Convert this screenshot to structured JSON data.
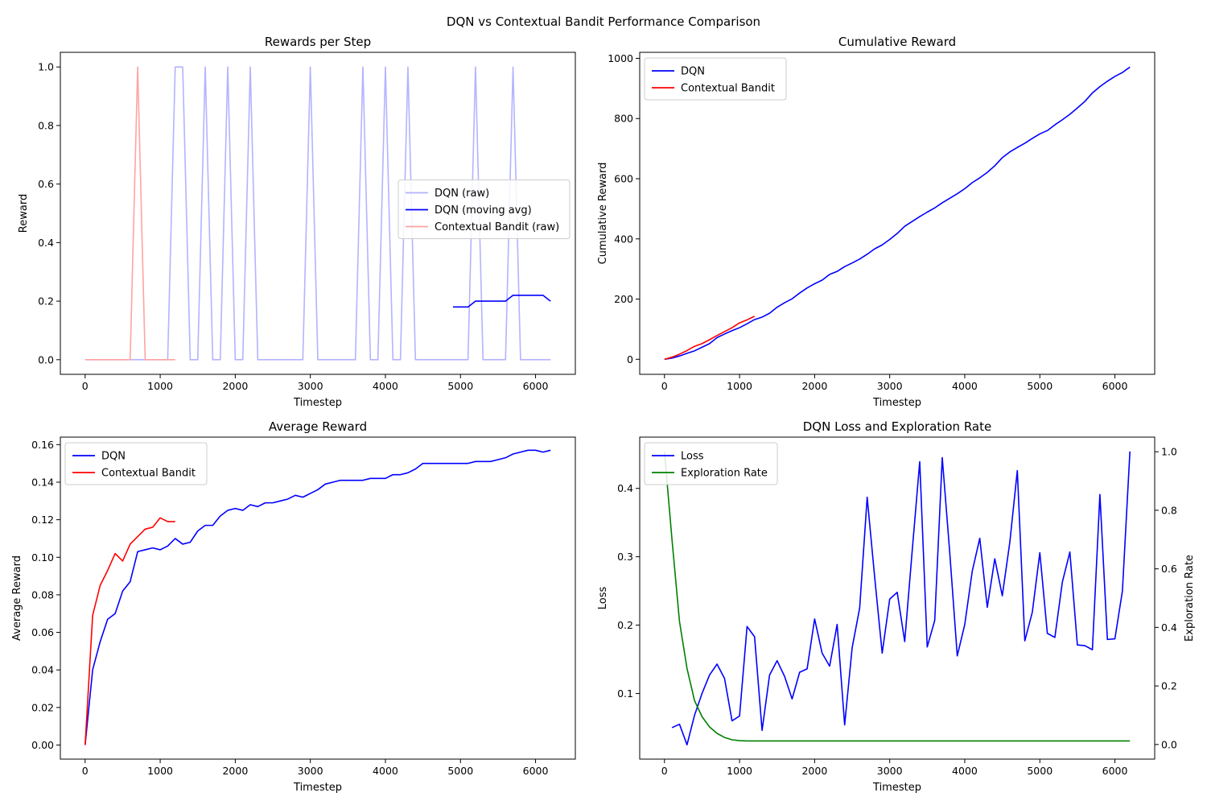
{
  "figure": {
    "title": "DQN vs Contextual Bandit Performance Comparison"
  },
  "chart_data": [
    {
      "id": "rewards",
      "type": "line",
      "title": "Rewards per Step",
      "xlabel": "Timestep",
      "ylabel": "Reward",
      "xlim": [
        -330,
        6530
      ],
      "ylim": [
        -0.05,
        1.05
      ],
      "xticks": [
        0,
        1000,
        2000,
        3000,
        4000,
        5000,
        6000
      ],
      "yticks": [
        0.0,
        0.2,
        0.4,
        0.6,
        0.8,
        1.0
      ],
      "ytick_decimals": 1,
      "legend": "center-right",
      "series": [
        {
          "name": "DQN (raw)",
          "color": "#b3b3ff",
          "x": [
            0,
            100,
            200,
            300,
            400,
            500,
            600,
            700,
            800,
            900,
            1000,
            1100,
            1200,
            1300,
            1400,
            1500,
            1600,
            1700,
            1800,
            1900,
            2000,
            2100,
            2200,
            2300,
            2400,
            2500,
            2600,
            2700,
            2800,
            2900,
            3000,
            3100,
            3200,
            3300,
            3400,
            3500,
            3600,
            3700,
            3800,
            3900,
            4000,
            4100,
            4200,
            4300,
            4400,
            4500,
            4600,
            4700,
            4800,
            4900,
            5000,
            5100,
            5200,
            5300,
            5400,
            5500,
            5600,
            5700,
            5800,
            5900,
            6000,
            6100,
            6200
          ],
          "y": [
            0,
            0,
            0,
            0,
            0,
            0,
            0,
            0,
            0,
            0,
            0,
            0,
            1,
            1,
            0,
            0,
            1,
            0,
            0,
            1,
            0,
            0,
            1,
            0,
            0,
            0,
            0,
            0,
            0,
            0,
            1,
            0,
            0,
            0,
            0,
            0,
            0,
            1,
            0,
            0,
            1,
            0,
            0,
            1,
            0,
            0,
            0,
            0,
            0,
            0,
            0,
            0,
            1,
            0,
            0,
            0,
            0,
            1,
            0,
            0,
            0,
            0,
            0
          ]
        },
        {
          "name": "DQN (moving avg)",
          "color": "#0000ff",
          "x": [
            4900,
            5000,
            5100,
            5200,
            5300,
            5400,
            5500,
            5600,
            5700,
            5800,
            5900,
            6000,
            6100,
            6200
          ],
          "y": [
            0.18,
            0.18,
            0.18,
            0.2,
            0.2,
            0.2,
            0.2,
            0.2,
            0.22,
            0.22,
            0.22,
            0.22,
            0.22,
            0.2
          ]
        },
        {
          "name": "Contextual Bandit (raw)",
          "color": "#ffa3a3",
          "x": [
            0,
            100,
            200,
            300,
            400,
            500,
            600,
            700,
            800,
            900,
            1000,
            1100,
            1200
          ],
          "y": [
            0,
            0,
            0,
            0,
            0,
            0,
            0,
            1,
            0,
            0,
            0,
            0,
            0
          ]
        }
      ]
    },
    {
      "id": "cumulative",
      "type": "line",
      "title": "Cumulative Reward",
      "xlabel": "Timestep",
      "ylabel": "Cumulative Reward",
      "xlim": [
        -330,
        6530
      ],
      "ylim": [
        -50,
        1020
      ],
      "xticks": [
        0,
        1000,
        2000,
        3000,
        4000,
        5000,
        6000
      ],
      "yticks": [
        0,
        200,
        400,
        600,
        800,
        1000
      ],
      "ytick_decimals": 0,
      "legend": "top-left",
      "series": [
        {
          "name": "DQN",
          "color": "#0000ff",
          "x": [
            0,
            100,
            200,
            300,
            400,
            500,
            600,
            700,
            800,
            900,
            1000,
            1100,
            1200,
            1300,
            1400,
            1500,
            1600,
            1700,
            1800,
            1900,
            2000,
            2100,
            2200,
            2300,
            2400,
            2500,
            2600,
            2700,
            2800,
            2900,
            3000,
            3100,
            3200,
            3300,
            3400,
            3500,
            3600,
            3700,
            3800,
            3900,
            4000,
            4100,
            4200,
            4300,
            4400,
            4500,
            4600,
            4700,
            4800,
            4900,
            5000,
            5100,
            5200,
            5300,
            5400,
            5500,
            5600,
            5700,
            5800,
            5900,
            6000,
            6100,
            6200
          ],
          "y": [
            0,
            4,
            11,
            20,
            28,
            40,
            52,
            72,
            84,
            95,
            105,
            118,
            132,
            140,
            153,
            173,
            188,
            201,
            220,
            237,
            251,
            263,
            282,
            292,
            308,
            320,
            333,
            349,
            367,
            380,
            398,
            418,
            442,
            458,
            474,
            489,
            503,
            520,
            535,
            550,
            567,
            587,
            603,
            621,
            643,
            670,
            689,
            704,
            718,
            734,
            749,
            760,
            779,
            796,
            814,
            835,
            857,
            885,
            906,
            924,
            940,
            953,
            971
          ]
        },
        {
          "name": "Contextual Bandit",
          "color": "#ff0000",
          "x": [
            0,
            100,
            200,
            300,
            400,
            500,
            600,
            700,
            800,
            900,
            1000,
            1100,
            1200
          ],
          "y": [
            0,
            7,
            17,
            29,
            43,
            52,
            65,
            79,
            92,
            105,
            121,
            131,
            143
          ]
        }
      ]
    },
    {
      "id": "average",
      "type": "line",
      "title": "Average Reward",
      "xlabel": "Timestep",
      "ylabel": "Average Reward",
      "xlim": [
        -330,
        6530
      ],
      "ylim": [
        -0.0075,
        0.164
      ],
      "xticks": [
        0,
        1000,
        2000,
        3000,
        4000,
        5000,
        6000
      ],
      "yticks": [
        0.0,
        0.02,
        0.04,
        0.06,
        0.08,
        0.1,
        0.12,
        0.14,
        0.16
      ],
      "ytick_decimals": 2,
      "legend": "top-left",
      "series": [
        {
          "name": "DQN",
          "color": "#0000ff",
          "x": [
            0,
            100,
            200,
            300,
            400,
            500,
            600,
            700,
            800,
            900,
            1000,
            1100,
            1200,
            1300,
            1400,
            1500,
            1600,
            1700,
            1800,
            1900,
            2000,
            2100,
            2200,
            2300,
            2400,
            2500,
            2600,
            2700,
            2800,
            2900,
            3000,
            3100,
            3200,
            3300,
            3400,
            3500,
            3600,
            3700,
            3800,
            3900,
            4000,
            4100,
            4200,
            4300,
            4400,
            4500,
            4600,
            4700,
            4800,
            4900,
            5000,
            5100,
            5200,
            5300,
            5400,
            5500,
            5600,
            5700,
            5800,
            5900,
            6000,
            6100,
            6200
          ],
          "y": [
            0.0,
            0.04,
            0.055,
            0.067,
            0.07,
            0.082,
            0.087,
            0.103,
            0.104,
            0.105,
            0.104,
            0.106,
            0.11,
            0.107,
            0.108,
            0.114,
            0.117,
            0.117,
            0.122,
            0.125,
            0.126,
            0.125,
            0.128,
            0.127,
            0.129,
            0.129,
            0.13,
            0.131,
            0.133,
            0.132,
            0.134,
            0.136,
            0.139,
            0.14,
            0.141,
            0.141,
            0.141,
            0.141,
            0.142,
            0.142,
            0.142,
            0.144,
            0.144,
            0.145,
            0.147,
            0.15,
            0.15,
            0.15,
            0.15,
            0.15,
            0.15,
            0.15,
            0.151,
            0.151,
            0.151,
            0.152,
            0.153,
            0.155,
            0.156,
            0.157,
            0.157,
            0.156,
            0.157
          ]
        },
        {
          "name": "Contextual Bandit",
          "color": "#ff0000",
          "x": [
            0,
            100,
            200,
            300,
            400,
            500,
            600,
            700,
            800,
            900,
            1000,
            1100,
            1200
          ],
          "y": [
            0.0,
            0.069,
            0.085,
            0.093,
            0.102,
            0.098,
            0.107,
            0.111,
            0.115,
            0.116,
            0.121,
            0.119,
            0.119
          ]
        }
      ]
    },
    {
      "id": "loss",
      "type": "line",
      "title": "DQN Loss and Exploration Rate",
      "xlabel": "Timestep",
      "ylabel": "Loss",
      "y2label": "Exploration Rate",
      "xlim": [
        -330,
        6530
      ],
      "ylim": [
        0.004,
        0.475
      ],
      "y2lim": [
        -0.05,
        1.05
      ],
      "xticks": [
        0,
        1000,
        2000,
        3000,
        4000,
        5000,
        6000
      ],
      "yticks": [
        0.1,
        0.2,
        0.3,
        0.4
      ],
      "ytick_decimals": 1,
      "y2ticks": [
        0.0,
        0.2,
        0.4,
        0.6,
        0.8,
        1.0
      ],
      "legend": "top-left",
      "series": [
        {
          "name": "Loss",
          "color": "#0000ff",
          "axis": "left",
          "x": [
            100,
            200,
            300,
            400,
            500,
            600,
            700,
            800,
            900,
            1000,
            1100,
            1200,
            1300,
            1400,
            1500,
            1600,
            1700,
            1800,
            1900,
            2000,
            2100,
            2200,
            2300,
            2400,
            2500,
            2600,
            2700,
            2800,
            2900,
            3000,
            3100,
            3200,
            3300,
            3400,
            3500,
            3600,
            3700,
            3800,
            3900,
            4000,
            4100,
            4200,
            4300,
            4400,
            4500,
            4600,
            4700,
            4800,
            4900,
            5000,
            5100,
            5200,
            5300,
            5400,
            5500,
            5600,
            5700,
            5800,
            5900,
            6000,
            6100,
            6200
          ],
          "y": [
            0.05,
            0.055,
            0.025,
            0.068,
            0.1,
            0.127,
            0.143,
            0.122,
            0.06,
            0.067,
            0.198,
            0.183,
            0.046,
            0.127,
            0.148,
            0.125,
            0.092,
            0.131,
            0.136,
            0.209,
            0.159,
            0.14,
            0.201,
            0.054,
            0.167,
            0.225,
            0.387,
            0.27,
            0.159,
            0.238,
            0.248,
            0.176,
            0.309,
            0.439,
            0.168,
            0.207,
            0.445,
            0.306,
            0.155,
            0.201,
            0.279,
            0.327,
            0.226,
            0.297,
            0.243,
            0.321,
            0.426,
            0.177,
            0.219,
            0.306,
            0.188,
            0.182,
            0.263,
            0.307,
            0.171,
            0.17,
            0.164,
            0.391,
            0.179,
            0.18,
            0.25,
            0.454
          ]
        },
        {
          "name": "Exploration Rate",
          "color": "#008000",
          "axis": "right",
          "x": [
            0,
            100,
            200,
            300,
            400,
            500,
            600,
            700,
            800,
            900,
            1000,
            1100,
            1200,
            1300,
            1400,
            1500,
            1600,
            1700,
            1800,
            1900,
            2000,
            2100,
            2200,
            2300,
            2400,
            2500,
            2600,
            2700,
            2800,
            2900,
            3000,
            3100,
            3200,
            3300,
            3400,
            3500,
            3600,
            3700,
            3800,
            3900,
            4000,
            4100,
            4200,
            4300,
            4400,
            4500,
            4600,
            4700,
            4800,
            4900,
            5000,
            5100,
            5200,
            5300,
            5400,
            5500,
            5600,
            5700,
            5800,
            5900,
            6000,
            6100,
            6200
          ],
          "y": [
            1.0,
            0.7,
            0.42,
            0.26,
            0.15,
            0.095,
            0.06,
            0.038,
            0.024,
            0.016,
            0.013,
            0.012,
            0.012,
            0.012,
            0.012,
            0.012,
            0.012,
            0.012,
            0.012,
            0.012,
            0.012,
            0.012,
            0.012,
            0.012,
            0.012,
            0.012,
            0.012,
            0.012,
            0.012,
            0.012,
            0.012,
            0.012,
            0.012,
            0.012,
            0.012,
            0.012,
            0.012,
            0.012,
            0.012,
            0.012,
            0.012,
            0.012,
            0.012,
            0.012,
            0.012,
            0.012,
            0.012,
            0.012,
            0.012,
            0.012,
            0.012,
            0.012,
            0.012,
            0.012,
            0.012,
            0.012,
            0.012,
            0.012,
            0.012,
            0.012,
            0.012,
            0.012,
            0.012
          ]
        }
      ]
    }
  ]
}
